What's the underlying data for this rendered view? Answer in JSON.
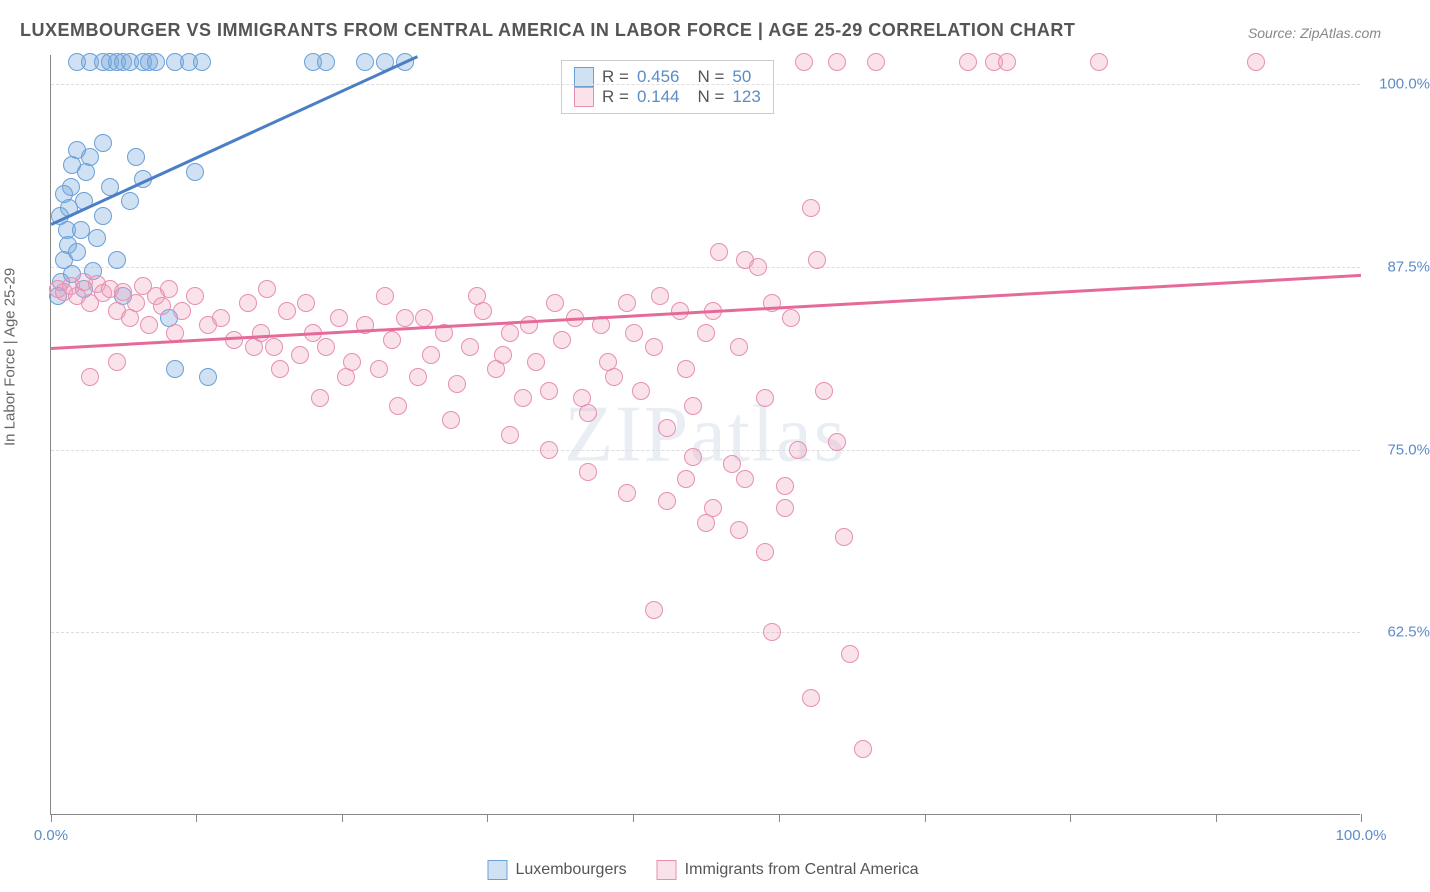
{
  "title": "LUXEMBOURGER VS IMMIGRANTS FROM CENTRAL AMERICA IN LABOR FORCE | AGE 25-29 CORRELATION CHART",
  "source_label": "Source: ",
  "source_link": "ZipAtlas.com",
  "y_axis_label": "In Labor Force | Age 25-29",
  "watermark": "ZIPatlas",
  "chart": {
    "type": "scatter",
    "xlim": [
      0,
      100
    ],
    "ylim": [
      50,
      102
    ],
    "y_ticks": [
      62.5,
      75.0,
      87.5,
      100.0
    ],
    "y_tick_labels": [
      "62.5%",
      "75.0%",
      "87.5%",
      "100.0%"
    ],
    "x_ticks": [
      0,
      11.1,
      22.2,
      33.3,
      44.4,
      55.6,
      66.7,
      77.8,
      88.9,
      100
    ],
    "x_tick_labels_shown": {
      "0": "0.0%",
      "100": "100.0%"
    },
    "background_color": "#ffffff",
    "grid_color": "#dddddd",
    "axis_color": "#888888",
    "tick_label_color": "#5b8cc9",
    "marker_size": 18,
    "series": [
      {
        "name": "Luxembourgers",
        "color_fill": "rgba(120,170,220,0.35)",
        "color_stroke": "#6aa0d8",
        "trend_color": "#4a7fc5",
        "R": "0.456",
        "N": "50",
        "trend": {
          "x1": 0,
          "y1": 90.5,
          "x2": 28,
          "y2": 102
        },
        "points": [
          [
            0.5,
            85.5
          ],
          [
            0.8,
            86.5
          ],
          [
            1.0,
            88.0
          ],
          [
            1.2,
            90.0
          ],
          [
            1.4,
            91.5
          ],
          [
            1.5,
            93.0
          ],
          [
            1.6,
            94.5
          ],
          [
            2.0,
            95.5
          ],
          [
            0.7,
            91.0
          ],
          [
            1.0,
            92.5
          ],
          [
            1.3,
            89.0
          ],
          [
            1.6,
            87.0
          ],
          [
            2.0,
            88.5
          ],
          [
            2.3,
            90.0
          ],
          [
            2.5,
            92.0
          ],
          [
            2.7,
            94.0
          ],
          [
            3.0,
            95.0
          ],
          [
            3.5,
            89.5
          ],
          [
            4.0,
            91.0
          ],
          [
            4.5,
            93.0
          ],
          [
            5.0,
            88.0
          ],
          [
            5.5,
            85.5
          ],
          [
            6.0,
            92.0
          ],
          [
            6.5,
            95.0
          ],
          [
            2.0,
            101.5
          ],
          [
            3.0,
            101.5
          ],
          [
            4.0,
            101.5
          ],
          [
            4.5,
            101.5
          ],
          [
            5.0,
            101.5
          ],
          [
            5.5,
            101.5
          ],
          [
            6.0,
            101.5
          ],
          [
            7.0,
            101.5
          ],
          [
            7.5,
            101.5
          ],
          [
            8.0,
            101.5
          ],
          [
            9.5,
            101.5
          ],
          [
            10.5,
            101.5
          ],
          [
            11.5,
            101.5
          ],
          [
            20.0,
            101.5
          ],
          [
            21.0,
            101.5
          ],
          [
            24.0,
            101.5
          ],
          [
            25.5,
            101.5
          ],
          [
            27.0,
            101.5
          ],
          [
            2.5,
            86.0
          ],
          [
            3.2,
            87.2
          ],
          [
            4.0,
            96.0
          ],
          [
            7.0,
            93.5
          ],
          [
            9.0,
            84.0
          ],
          [
            9.5,
            80.5
          ],
          [
            11.0,
            94.0
          ],
          [
            12.0,
            80.0
          ]
        ]
      },
      {
        "name": "Immigrants from Central America",
        "color_fill": "rgba(240,160,190,0.30)",
        "color_stroke": "#e78fb0",
        "trend_color": "#e56a9a",
        "R": "0.144",
        "N": "123",
        "trend": {
          "x1": 0,
          "y1": 82.0,
          "x2": 100,
          "y2": 87.0
        },
        "points": [
          [
            0.5,
            86.0
          ],
          [
            1.0,
            85.8
          ],
          [
            1.5,
            86.2
          ],
          [
            2.0,
            85.5
          ],
          [
            2.5,
            86.5
          ],
          [
            3.0,
            85.0
          ],
          [
            3.5,
            86.3
          ],
          [
            4.0,
            85.7
          ],
          [
            4.5,
            86.0
          ],
          [
            5.0,
            84.5
          ],
          [
            5.5,
            85.8
          ],
          [
            6.0,
            84.0
          ],
          [
            6.5,
            85.0
          ],
          [
            7.0,
            86.2
          ],
          [
            7.5,
            83.5
          ],
          [
            8.0,
            85.5
          ],
          [
            8.5,
            84.8
          ],
          [
            9.0,
            86.0
          ],
          [
            9.5,
            83.0
          ],
          [
            10.0,
            84.5
          ],
          [
            11.0,
            85.5
          ],
          [
            12.0,
            83.5
          ],
          [
            13.0,
            84.0
          ],
          [
            14.0,
            82.5
          ],
          [
            15.0,
            85.0
          ],
          [
            16.0,
            83.0
          ],
          [
            17.0,
            82.0
          ],
          [
            18.0,
            84.5
          ],
          [
            19.0,
            81.5
          ],
          [
            20.0,
            83.0
          ],
          [
            21.0,
            82.0
          ],
          [
            22.0,
            84.0
          ],
          [
            23.0,
            81.0
          ],
          [
            24.0,
            83.5
          ],
          [
            25.0,
            80.5
          ],
          [
            26.0,
            82.5
          ],
          [
            27.0,
            84.0
          ],
          [
            28.0,
            80.0
          ],
          [
            29.0,
            81.5
          ],
          [
            30.0,
            83.0
          ],
          [
            31.0,
            79.5
          ],
          [
            32.0,
            82.0
          ],
          [
            33.0,
            84.5
          ],
          [
            34.0,
            80.5
          ],
          [
            35.0,
            83.0
          ],
          [
            36.0,
            78.5
          ],
          [
            37.0,
            81.0
          ],
          [
            38.0,
            79.0
          ],
          [
            39.0,
            82.5
          ],
          [
            40.0,
            84.0
          ],
          [
            41.0,
            77.5
          ],
          [
            42.0,
            83.5
          ],
          [
            43.0,
            80.0
          ],
          [
            44.0,
            85.0
          ],
          [
            45.0,
            79.0
          ],
          [
            46.0,
            82.0
          ],
          [
            47.0,
            76.5
          ],
          [
            48.0,
            84.5
          ],
          [
            49.0,
            78.0
          ],
          [
            50.0,
            83.0
          ],
          [
            51.0,
            88.5
          ],
          [
            52.0,
            74.0
          ],
          [
            53.0,
            88.0
          ],
          [
            54.0,
            87.5
          ],
          [
            55.0,
            85.0
          ],
          [
            56.0,
            72.5
          ],
          [
            57.0,
            75.0
          ],
          [
            58.0,
            91.5
          ],
          [
            59.0,
            79.0
          ],
          [
            48.5,
            73.0
          ],
          [
            50.5,
            71.0
          ],
          [
            52.5,
            69.5
          ],
          [
            54.5,
            68.0
          ],
          [
            46.0,
            64.0
          ],
          [
            55.0,
            62.5
          ],
          [
            58.0,
            58.0
          ],
          [
            60.0,
            75.5
          ],
          [
            60.5,
            69.0
          ],
          [
            61.0,
            61.0
          ],
          [
            62.0,
            54.5
          ],
          [
            57.5,
            101.5
          ],
          [
            60.0,
            101.5
          ],
          [
            63.0,
            101.5
          ],
          [
            70.0,
            101.5
          ],
          [
            72.0,
            101.5
          ],
          [
            73.0,
            101.5
          ],
          [
            80.0,
            101.5
          ],
          [
            92.0,
            101.5
          ],
          [
            15.5,
            82.0
          ],
          [
            16.5,
            86.0
          ],
          [
            17.5,
            80.5
          ],
          [
            19.5,
            85.0
          ],
          [
            20.5,
            78.5
          ],
          [
            22.5,
            80.0
          ],
          [
            25.5,
            85.5
          ],
          [
            26.5,
            78.0
          ],
          [
            28.5,
            84.0
          ],
          [
            30.5,
            77.0
          ],
          [
            32.5,
            85.5
          ],
          [
            34.5,
            81.5
          ],
          [
            36.5,
            83.5
          ],
          [
            38.5,
            85.0
          ],
          [
            40.5,
            78.5
          ],
          [
            42.5,
            81.0
          ],
          [
            44.5,
            83.0
          ],
          [
            46.5,
            85.5
          ],
          [
            48.5,
            80.5
          ],
          [
            50.5,
            84.5
          ],
          [
            52.5,
            82.0
          ],
          [
            54.5,
            78.5
          ],
          [
            56.5,
            84.0
          ],
          [
            58.5,
            88.0
          ],
          [
            35.0,
            76.0
          ],
          [
            38.0,
            75.0
          ],
          [
            41.0,
            73.5
          ],
          [
            44.0,
            72.0
          ],
          [
            47.0,
            71.5
          ],
          [
            50.0,
            70.0
          ],
          [
            53.0,
            73.0
          ],
          [
            56.0,
            71.0
          ],
          [
            49.0,
            74.5
          ],
          [
            3.0,
            80.0
          ],
          [
            5.0,
            81.0
          ]
        ]
      }
    ]
  },
  "stat_legend": {
    "rows": [
      {
        "swatch": "blue",
        "r_label": "R =",
        "r_val": "0.456",
        "n_label": "N =",
        "n_val": "50"
      },
      {
        "swatch": "pink",
        "r_label": "R =",
        "r_val": "0.144",
        "n_label": "N =",
        "n_val": "123"
      }
    ]
  },
  "bottom_legend": [
    {
      "swatch": "blue",
      "label": "Luxembourgers"
    },
    {
      "swatch": "pink",
      "label": "Immigrants from Central America"
    }
  ]
}
